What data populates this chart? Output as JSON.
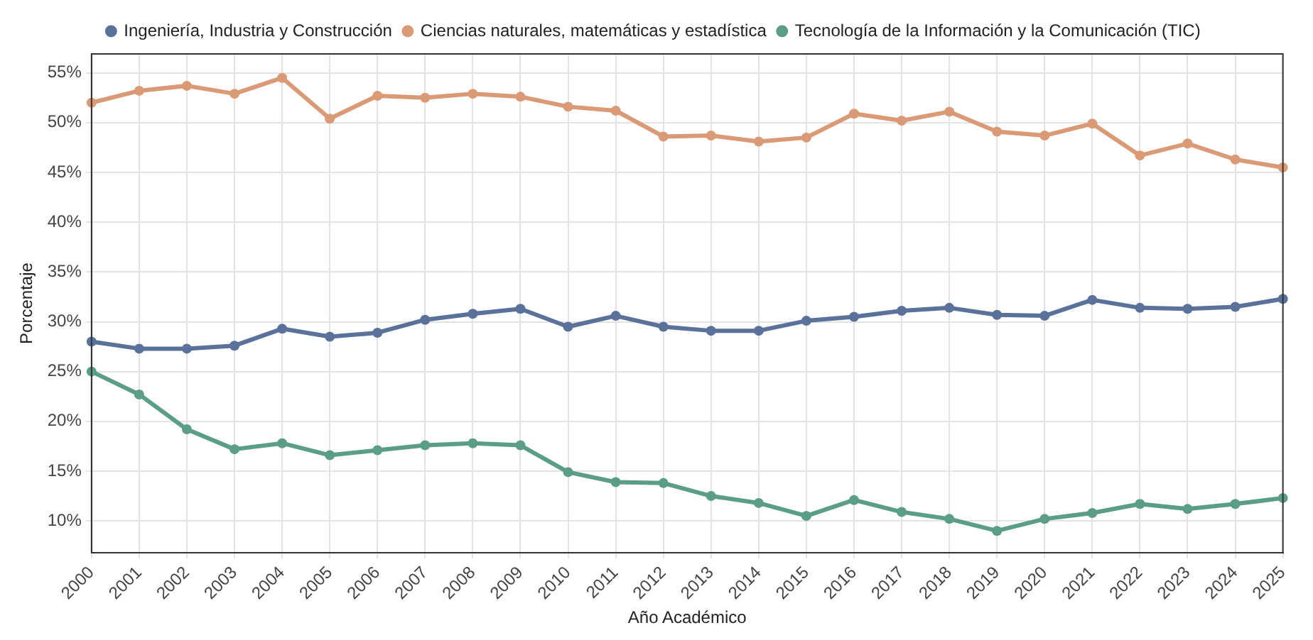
{
  "chart_data": {
    "type": "line",
    "xlabel": "Año Académico",
    "ylabel": "Porcentaje",
    "categories": [
      "2000",
      "2001",
      "2002",
      "2003",
      "2004",
      "2005",
      "2006",
      "2007",
      "2008",
      "2009",
      "2010",
      "2011",
      "2012",
      "2013",
      "2014",
      "2015",
      "2016",
      "2017",
      "2018",
      "2019",
      "2020",
      "2021",
      "2022",
      "2023",
      "2024",
      "2025"
    ],
    "series": [
      {
        "name": "Ingeniería, Industria y Construcción",
        "color": "#5a7199",
        "values": [
          28.0,
          27.3,
          27.3,
          27.6,
          29.3,
          28.5,
          28.9,
          30.2,
          30.8,
          31.3,
          29.5,
          30.6,
          29.5,
          29.1,
          29.1,
          30.1,
          30.5,
          31.1,
          31.4,
          30.7,
          30.6,
          32.2,
          31.4,
          31.3,
          31.5,
          32.3
        ]
      },
      {
        "name": "Ciencias naturales, matemáticas y estadística",
        "color": "#d99a75",
        "values": [
          52.0,
          53.2,
          53.7,
          52.9,
          54.5,
          50.4,
          52.7,
          52.5,
          52.9,
          52.6,
          51.6,
          51.2,
          48.6,
          48.7,
          48.1,
          48.5,
          50.9,
          50.2,
          51.1,
          49.1,
          48.7,
          49.9,
          46.7,
          47.9,
          46.3,
          45.5
        ]
      },
      {
        "name": "Tecnología de la Información y la Comunicación (TIC)",
        "color": "#5a9e85",
        "values": [
          25.0,
          22.7,
          19.2,
          17.2,
          17.8,
          16.6,
          17.1,
          17.6,
          17.8,
          17.6,
          14.9,
          13.9,
          13.8,
          12.5,
          11.8,
          10.5,
          12.1,
          10.9,
          10.2,
          9.0,
          10.2,
          10.8,
          11.7,
          11.2,
          11.7,
          12.3
        ]
      }
    ],
    "ylim": [
      6.8,
      56.9
    ],
    "yticks": [
      {
        "value": 10,
        "label": "10%"
      },
      {
        "value": 15,
        "label": "15%"
      },
      {
        "value": 20,
        "label": "20%"
      },
      {
        "value": 25,
        "label": "25%"
      },
      {
        "value": 30,
        "label": "30%"
      },
      {
        "value": 35,
        "label": "35%"
      },
      {
        "value": 40,
        "label": "40%"
      },
      {
        "value": 45,
        "label": "45%"
      },
      {
        "value": 50,
        "label": "50%"
      },
      {
        "value": 55,
        "label": "55%"
      }
    ],
    "grid": true,
    "legend": "top",
    "marker": "circle",
    "line_style": "solid"
  }
}
